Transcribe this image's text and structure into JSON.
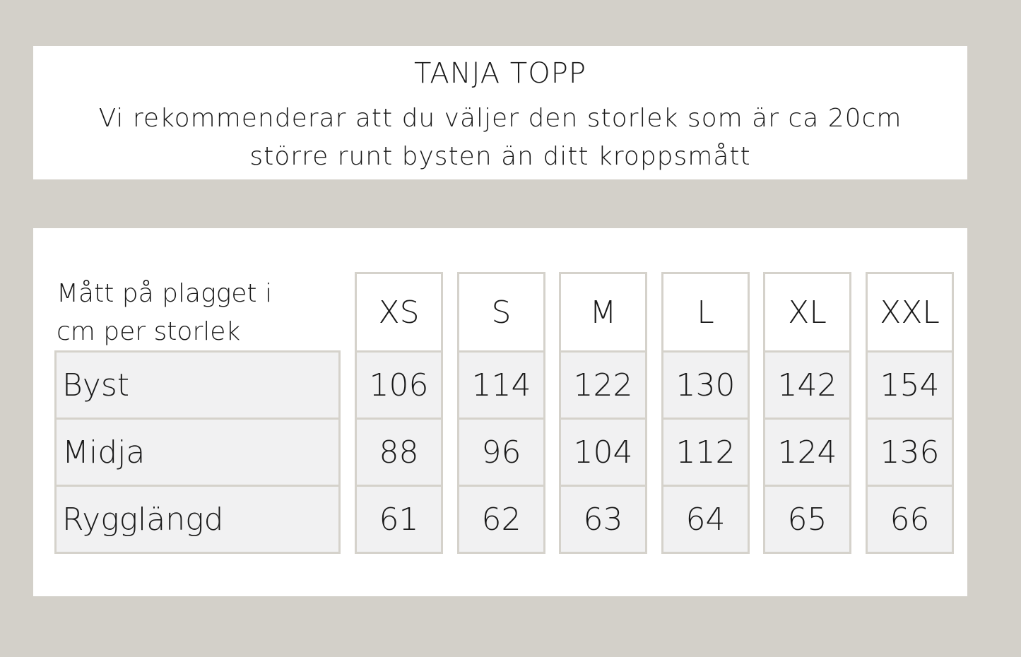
{
  "header": {
    "title": "TANJA TOPP",
    "subtitle_line1": "Vi rekommenderar att du väljer den storlek som är ca 20cm",
    "subtitle_line2": "större runt bysten än ditt kroppsmått"
  },
  "table": {
    "corner_line1": "Mått på plagget i",
    "corner_line2": "cm per storlek",
    "sizes": [
      "XS",
      "S",
      "M",
      "L",
      "XL",
      "XXL"
    ],
    "rows": [
      {
        "label": "Byst",
        "values": [
          "106",
          "114",
          "122",
          "130",
          "142",
          "154"
        ]
      },
      {
        "label": "Midja",
        "values": [
          "88",
          "96",
          "104",
          "112",
          "124",
          "136"
        ]
      },
      {
        "label": "Rygglängd",
        "values": [
          "61",
          "62",
          "63",
          "64",
          "65",
          "66"
        ]
      }
    ]
  },
  "colors": {
    "background": "#d3d0c9",
    "cell_fill": "#f1f1f2",
    "border": "#d5d2cb"
  }
}
